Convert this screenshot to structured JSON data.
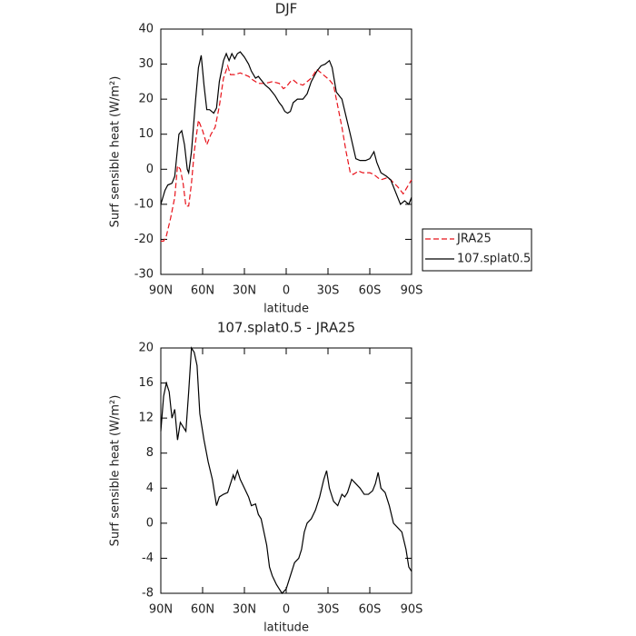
{
  "chart_data": [
    {
      "type": "line",
      "title": "DJF",
      "x_label": "latitude",
      "y_label": "Surf sensible heat (W/m²)",
      "xlim": [
        90,
        -90
      ],
      "ylim": [
        -30,
        40
      ],
      "xticks": [
        {
          "value": 90,
          "label": "90N"
        },
        {
          "value": 60,
          "label": "60N"
        },
        {
          "value": 30,
          "label": "30N"
        },
        0,
        {
          "value": -30,
          "label": "30S"
        },
        {
          "value": -60,
          "label": "60S"
        },
        {
          "value": -90,
          "label": "90S"
        }
      ],
      "yticks": [
        -30,
        -20,
        -10,
        0,
        10,
        20,
        30,
        40
      ],
      "legend": "outside right",
      "series": [
        {
          "name": "JRA25",
          "color": "#e8131b",
          "dash": true,
          "x": [
            90,
            88,
            86,
            83,
            80,
            78,
            76,
            74,
            72,
            70,
            68,
            66,
            63,
            60,
            57,
            54,
            51,
            48,
            45,
            42,
            40,
            37,
            33,
            30,
            27,
            24,
            20,
            15,
            10,
            5,
            2,
            0,
            -3,
            -5,
            -8,
            -12,
            -15,
            -18,
            -22,
            -25,
            -28,
            -31,
            -34,
            -37,
            -40,
            -43,
            -46,
            -48,
            -52,
            -55,
            -60,
            -63,
            -66,
            -68,
            -72,
            -75,
            -80,
            -84,
            -87,
            -90
          ],
          "values": [
            -20.5,
            -20.5,
            -19,
            -14,
            -8,
            1,
            0,
            -4,
            -10.5,
            -10.5,
            -4,
            5,
            14,
            11,
            7,
            10,
            12,
            18,
            26,
            29.5,
            27,
            27,
            27.5,
            27,
            26.5,
            25.5,
            24.5,
            24.5,
            25,
            24.5,
            23,
            23.5,
            25,
            25.5,
            24.5,
            24,
            25,
            26,
            28.5,
            27.5,
            26.5,
            25.5,
            24,
            18,
            12,
            5,
            -1,
            -1.5,
            -0.5,
            -1,
            -1,
            -1.5,
            -2.5,
            -3,
            -2.5,
            -3,
            -5,
            -7,
            -5,
            -3
          ]
        },
        {
          "name": "107.splat0.5",
          "color": "#000000",
          "dash": false,
          "x": [
            90,
            87,
            85,
            82,
            80,
            77,
            75,
            73,
            71,
            70,
            68,
            65,
            63,
            61,
            59,
            57,
            55,
            52,
            50,
            48,
            45,
            43,
            41,
            39,
            37,
            35,
            33,
            30,
            27,
            25,
            22,
            20,
            17,
            15,
            12,
            10,
            8,
            5,
            3,
            1,
            -1,
            -3,
            -5,
            -8,
            -12,
            -15,
            -18,
            -22,
            -25,
            -28,
            -31,
            -33,
            -36,
            -40,
            -43,
            -46,
            -50,
            -53,
            -57,
            -60,
            -63,
            -65,
            -68,
            -72,
            -75,
            -78,
            -82,
            -85,
            -88,
            -90
          ],
          "values": [
            -10,
            -6,
            -4.5,
            -4,
            -2,
            10,
            11,
            7,
            0,
            -1,
            5,
            20,
            29,
            32.5,
            24,
            17,
            17,
            16,
            17.5,
            25,
            31,
            33,
            31,
            33,
            31.5,
            33,
            33.5,
            32,
            30,
            28,
            26,
            26.5,
            25,
            24,
            23,
            22,
            21,
            19,
            18,
            16.5,
            16,
            16.5,
            19,
            20,
            20,
            21.5,
            25,
            28,
            29.5,
            30,
            31,
            29,
            22,
            20,
            15,
            10,
            3,
            2.5,
            2.5,
            3,
            5,
            2,
            -1,
            -2,
            -3,
            -6,
            -10,
            -9,
            -10,
            -8
          ]
        }
      ]
    },
    {
      "type": "line",
      "title": "107.splat0.5 - JRA25",
      "x_label": "latitude",
      "y_label": "Surf sensible heat (W/m²)",
      "xlim": [
        90,
        -90
      ],
      "ylim": [
        -8,
        20
      ],
      "xticks": [
        {
          "value": 90,
          "label": "90N"
        },
        {
          "value": 60,
          "label": "60N"
        },
        {
          "value": 30,
          "label": "30N"
        },
        0,
        {
          "value": -30,
          "label": "30S"
        },
        {
          "value": -60,
          "label": "60S"
        },
        {
          "value": -90,
          "label": "90S"
        }
      ],
      "yticks": [
        -8,
        -4,
        0,
        4,
        8,
        12,
        16,
        20
      ],
      "color": "#000000",
      "x": [
        90,
        88,
        86,
        84,
        82,
        80,
        78,
        76,
        74,
        72,
        70,
        68,
        66,
        64,
        62,
        59,
        56,
        53,
        50,
        48,
        45,
        42,
        40,
        38,
        37,
        35,
        33,
        30,
        27,
        25,
        22,
        20,
        18,
        16,
        14,
        12,
        10,
        7,
        5,
        3,
        0,
        -3,
        -6,
        -9,
        -11,
        -13,
        -15,
        -18,
        -21,
        -24,
        -27,
        -29,
        -31,
        -34,
        -37,
        -40,
        -42,
        -44,
        -47,
        -50,
        -53,
        -56,
        -59,
        -62,
        -64,
        -66,
        -68,
        -71,
        -74,
        -77,
        -80,
        -83,
        -86,
        -88,
        -90
      ],
      "values": [
        10.5,
        14.5,
        16,
        15,
        12,
        13,
        9.5,
        11.5,
        11,
        10.5,
        15,
        20,
        19.5,
        18,
        12.5,
        9.5,
        7,
        5,
        2,
        3,
        3.3,
        3.5,
        4.5,
        5.5,
        5,
        6,
        5,
        4,
        3,
        2,
        2.2,
        1,
        0.5,
        -1,
        -2.5,
        -5,
        -6,
        -7,
        -7.5,
        -8,
        -7.5,
        -6,
        -4.5,
        -4,
        -3,
        -1,
        0,
        0.5,
        1.5,
        3,
        5,
        6,
        4,
        2.5,
        2,
        3.3,
        3,
        3.5,
        5,
        4.5,
        4,
        3.3,
        3.3,
        3.7,
        4.5,
        5.8,
        4,
        3.5,
        2,
        0,
        -0.5,
        -1,
        -3,
        -5,
        -5.5
      ]
    }
  ]
}
